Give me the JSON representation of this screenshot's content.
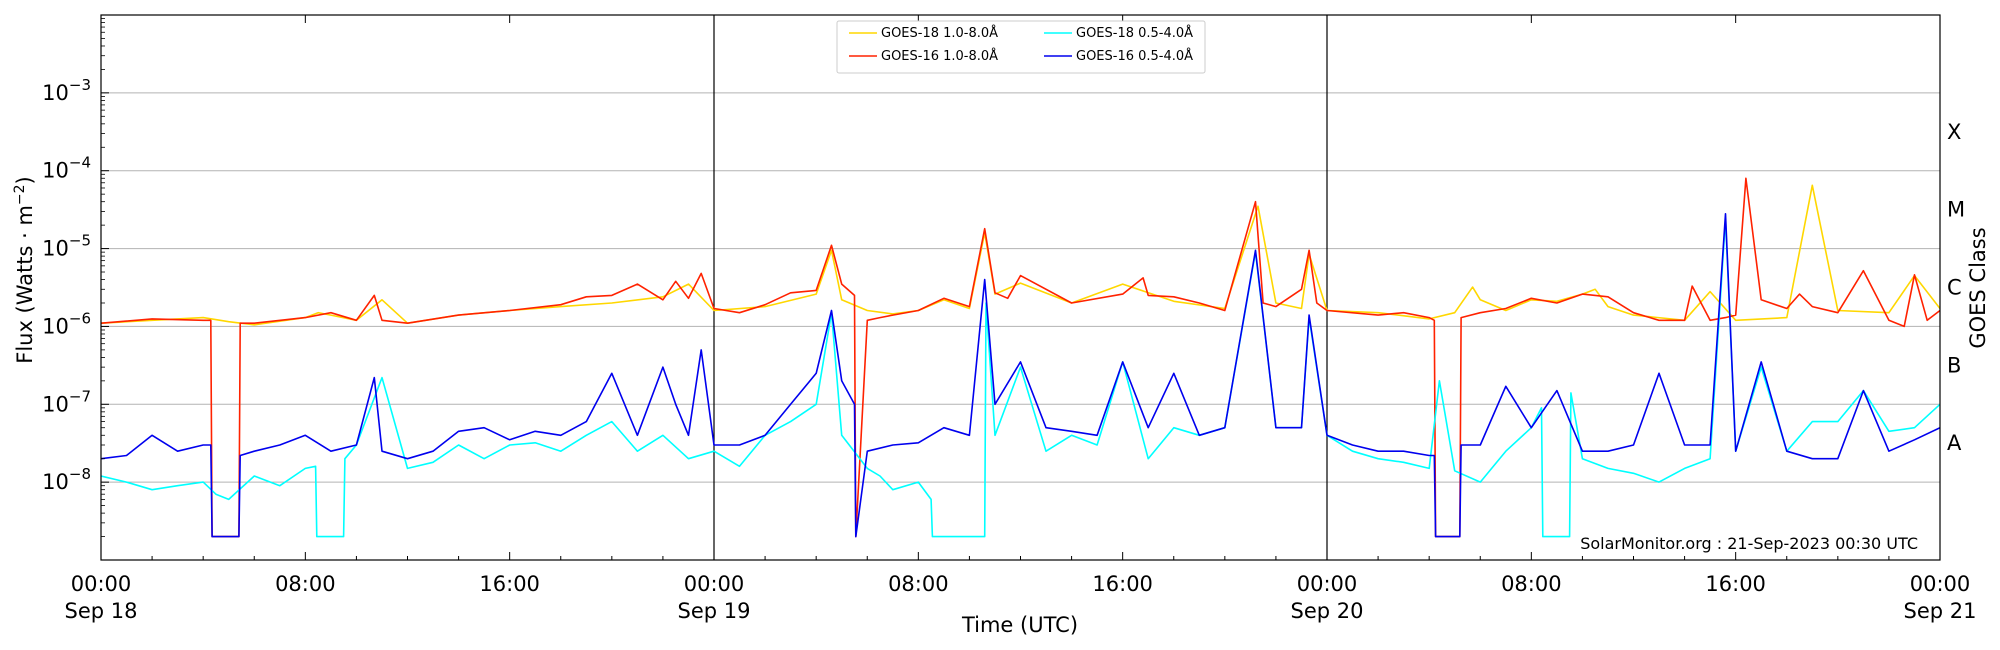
{
  "chart_data": {
    "type": "line",
    "title": "",
    "xlabel": "Time (UTC)",
    "ylabel": "Flux (Watts · m",
    "ylabel_sup": "−2",
    "ylabel_close": ")",
    "right_label": "GOES Class",
    "y_scale": "log",
    "ylim": [
      1e-09,
      0.01
    ],
    "xlim_hours": [
      0,
      72
    ],
    "grid": "horizontal",
    "legend_position": "top-center",
    "watermark": "SolarMonitor.org : 21-Sep-2023 00:30 UTC",
    "x_ticks": [
      {
        "hour": 0,
        "time": "00:00",
        "date": "Sep 18"
      },
      {
        "hour": 8,
        "time": "08:00",
        "date": ""
      },
      {
        "hour": 16,
        "time": "16:00",
        "date": ""
      },
      {
        "hour": 24,
        "time": "00:00",
        "date": "Sep 19"
      },
      {
        "hour": 32,
        "time": "08:00",
        "date": ""
      },
      {
        "hour": 40,
        "time": "16:00",
        "date": ""
      },
      {
        "hour": 48,
        "time": "00:00",
        "date": "Sep 20"
      },
      {
        "hour": 56,
        "time": "08:00",
        "date": ""
      },
      {
        "hour": 64,
        "time": "16:00",
        "date": ""
      },
      {
        "hour": 72,
        "time": "00:00",
        "date": "Sep 21"
      }
    ],
    "day_boundaries_hours": [
      24,
      48
    ],
    "y_ticks": [
      {
        "exp": -8,
        "base": "10",
        "sup": "−8"
      },
      {
        "exp": -7,
        "base": "10",
        "sup": "−7"
      },
      {
        "exp": -6,
        "base": "10",
        "sup": "−6"
      },
      {
        "exp": -5,
        "base": "10",
        "sup": "−5"
      },
      {
        "exp": -4,
        "base": "10",
        "sup": "−4"
      },
      {
        "exp": -3,
        "base": "10",
        "sup": "−3"
      }
    ],
    "goes_classes": [
      {
        "label": "A",
        "exp": -7.5
      },
      {
        "label": "B",
        "exp": -6.5
      },
      {
        "label": "C",
        "exp": -5.5
      },
      {
        "label": "M",
        "exp": -4.5
      },
      {
        "label": "X",
        "exp": -3.5
      }
    ],
    "series": [
      {
        "name": "GOES-18 1.0-8.0Å",
        "color": "#ffd700",
        "x": [
          0,
          2,
          4,
          5,
          6,
          8,
          8.5,
          9,
          10,
          11,
          12,
          14,
          16,
          18,
          20,
          22,
          23,
          24,
          26,
          28,
          28.6,
          29,
          30,
          31,
          32,
          33,
          34,
          34.6,
          35,
          36,
          38,
          40,
          42,
          44,
          45.3,
          46,
          47,
          47.3,
          48,
          50,
          52,
          53,
          53.7,
          54,
          55,
          56,
          57,
          58,
          58.5,
          59,
          60,
          62,
          63,
          64,
          66,
          67,
          68,
          70,
          71,
          72
        ],
        "y": [
          1.1e-06,
          1.2e-06,
          1.3e-06,
          1.15e-06,
          1.05e-06,
          1.3e-06,
          1.5e-06,
          1.4e-06,
          1.2e-06,
          2.2e-06,
          1.1e-06,
          1.4e-06,
          1.6e-06,
          1.8e-06,
          2e-06,
          2.4e-06,
          3.5e-06,
          1.6e-06,
          1.8e-06,
          2.6e-06,
          9.5e-06,
          2.2e-06,
          1.6e-06,
          1.45e-06,
          1.6e-06,
          2.2e-06,
          1.7e-06,
          1.6e-05,
          2.6e-06,
          3.6e-06,
          2e-06,
          3.5e-06,
          2.1e-06,
          1.7e-06,
          3.5e-05,
          2e-06,
          1.7e-06,
          8.5e-06,
          1.6e-06,
          1.5e-06,
          1.25e-06,
          1.5e-06,
          3.2e-06,
          2.2e-06,
          1.6e-06,
          2.2e-06,
          2.1e-06,
          2.6e-06,
          3e-06,
          1.8e-06,
          1.4e-06,
          1.2e-06,
          2.8e-06,
          1.2e-06,
          1.3e-06,
          6.5e-05,
          1.6e-06,
          1.5e-06,
          4.5e-06,
          1.7e-06
        ]
      },
      {
        "name": "GOES-16 1.0-8.0Å",
        "color": "#ff2200",
        "x": [
          0,
          2,
          4,
          4.3,
          4.35,
          5.4,
          5.45,
          6,
          8,
          9,
          10,
          10.7,
          11,
          12,
          14,
          16,
          18,
          19,
          20,
          21,
          22,
          22.5,
          23,
          23.5,
          24,
          25,
          26,
          27,
          28,
          28.6,
          29,
          29.5,
          29.55,
          30,
          30.5,
          31,
          32,
          33,
          34,
          34.6,
          35,
          35.5,
          36,
          38,
          40,
          40.8,
          41,
          42,
          43,
          44,
          45.2,
          45.5,
          46,
          47,
          47.3,
          47.6,
          48,
          50,
          51,
          52,
          52.2,
          52.25,
          53.2,
          53.25,
          54,
          55,
          56,
          57,
          58,
          59,
          60,
          61,
          62,
          62.3,
          63,
          63.6,
          64,
          64.4,
          65,
          66,
          66.5,
          67,
          68,
          69,
          70,
          70.6,
          71,
          71.5,
          72
        ],
        "y": [
          1.1e-06,
          1.25e-06,
          1.2e-06,
          1.2e-06,
          2e-09,
          2e-09,
          1.1e-06,
          1.1e-06,
          1.3e-06,
          1.5e-06,
          1.2e-06,
          2.5e-06,
          1.2e-06,
          1.1e-06,
          1.4e-06,
          1.6e-06,
          1.9e-06,
          2.4e-06,
          2.5e-06,
          3.5e-06,
          2.2e-06,
          3.8e-06,
          2.3e-06,
          4.8e-06,
          1.7e-06,
          1.5e-06,
          1.9e-06,
          2.7e-06,
          2.9e-06,
          1.1e-05,
          3.5e-06,
          2.5e-06,
          2e-09,
          1.2e-06,
          1.3e-06,
          1.4e-06,
          1.6e-06,
          2.3e-06,
          1.8e-06,
          1.8e-05,
          2.7e-06,
          2.3e-06,
          4.5e-06,
          2e-06,
          2.6e-06,
          4.2e-06,
          2.5e-06,
          2.4e-06,
          2e-06,
          1.6e-06,
          4e-05,
          2e-06,
          1.8e-06,
          3e-06,
          9.5e-06,
          2e-06,
          1.6e-06,
          1.4e-06,
          1.5e-06,
          1.3e-06,
          1.2e-06,
          2e-09,
          2e-09,
          1.3e-06,
          1.5e-06,
          1.7e-06,
          2.3e-06,
          2e-06,
          2.6e-06,
          2.4e-06,
          1.5e-06,
          1.2e-06,
          1.2e-06,
          3.3e-06,
          1.2e-06,
          1.3e-06,
          1.4e-06,
          8e-05,
          2.2e-06,
          1.7e-06,
          2.6e-06,
          1.8e-06,
          1.5e-06,
          5.2e-06,
          1.2e-06,
          1e-06,
          4.6e-06,
          1.2e-06,
          1.6e-06
        ]
      },
      {
        "name": "GOES-18 0.5-4.0Å",
        "color": "#00ffff",
        "x": [
          0,
          1,
          2,
          3,
          4,
          4.5,
          5,
          6,
          7,
          8,
          8.4,
          8.45,
          9.5,
          9.55,
          10,
          11,
          12,
          13,
          14,
          15,
          16,
          17,
          18,
          19,
          20,
          21,
          22,
          23,
          24,
          25,
          26,
          27,
          28,
          28.6,
          29,
          30,
          30.5,
          31,
          32,
          32.5,
          32.55,
          34.6,
          34.65,
          35,
          36,
          37,
          38,
          39,
          40,
          41,
          42,
          43,
          44,
          45.2,
          46,
          47,
          47.3,
          48,
          49,
          50,
          51,
          52,
          52.4,
          53,
          54,
          55,
          56,
          56.4,
          56.45,
          57.5,
          57.55,
          58,
          59,
          60,
          61,
          62,
          63,
          63.6,
          64,
          65,
          66,
          67,
          68,
          69,
          70,
          71,
          72
        ],
        "y": [
          1.2e-08,
          1e-08,
          8e-09,
          9e-09,
          1e-08,
          7e-09,
          6e-09,
          1.2e-08,
          9e-09,
          1.5e-08,
          1.6e-08,
          2e-09,
          2e-09,
          2e-08,
          3e-08,
          2.2e-07,
          1.5e-08,
          1.8e-08,
          3e-08,
          2e-08,
          3e-08,
          3.2e-08,
          2.5e-08,
          4e-08,
          6e-08,
          2.5e-08,
          4e-08,
          2e-08,
          2.5e-08,
          1.6e-08,
          4e-08,
          6e-08,
          1e-07,
          1.5e-06,
          4e-08,
          1.5e-08,
          1.2e-08,
          8e-09,
          1e-08,
          6e-09,
          2e-09,
          2e-09,
          2e-06,
          4e-08,
          3e-07,
          2.5e-08,
          4e-08,
          3e-08,
          3.5e-07,
          2e-08,
          5e-08,
          4e-08,
          5e-08,
          9e-06,
          5e-08,
          5e-08,
          1.3e-06,
          4e-08,
          2.5e-08,
          2e-08,
          1.8e-08,
          1.5e-08,
          2e-07,
          1.4e-08,
          1e-08,
          2.5e-08,
          5e-08,
          9e-08,
          2e-09,
          2e-09,
          1.4e-07,
          2e-08,
          1.5e-08,
          1.3e-08,
          1e-08,
          1.5e-08,
          2e-08,
          2.4e-05,
          2.5e-08,
          3e-07,
          2.5e-08,
          6e-08,
          6e-08,
          1.5e-07,
          4.5e-08,
          5e-08,
          1e-07
        ]
      },
      {
        "name": "GOES-16 0.5-4.0Å",
        "color": "#0000ee",
        "x": [
          0,
          1,
          2,
          3,
          4,
          4.3,
          4.35,
          5.4,
          5.45,
          6,
          7,
          8,
          9,
          10,
          10.7,
          11,
          12,
          13,
          14,
          15,
          16,
          17,
          18,
          19,
          20,
          21,
          22,
          22.5,
          23,
          23.5,
          24,
          25,
          26,
          27,
          28,
          28.6,
          29,
          29.5,
          29.55,
          30,
          31,
          32,
          33,
          34,
          34.6,
          35,
          36,
          37,
          38,
          39,
          40,
          41,
          42,
          43,
          44,
          45.2,
          46,
          47,
          47.3,
          48,
          49,
          50,
          51,
          52,
          52.2,
          52.25,
          53.2,
          53.25,
          54,
          55,
          56,
          57,
          58,
          59,
          60,
          61,
          62,
          63,
          63.6,
          64,
          65,
          66,
          67,
          68,
          69,
          70,
          71,
          72
        ],
        "y": [
          2e-08,
          2.2e-08,
          4e-08,
          2.5e-08,
          3e-08,
          3e-08,
          2e-09,
          2e-09,
          2.2e-08,
          2.5e-08,
          3e-08,
          4e-08,
          2.5e-08,
          3e-08,
          2.2e-07,
          2.5e-08,
          2e-08,
          2.5e-08,
          4.5e-08,
          5e-08,
          3.5e-08,
          4.5e-08,
          4e-08,
          6e-08,
          2.5e-07,
          4e-08,
          3e-07,
          1e-07,
          4e-08,
          5e-07,
          3e-08,
          3e-08,
          4e-08,
          1e-07,
          2.5e-07,
          1.6e-06,
          2e-07,
          1e-07,
          2e-09,
          2.5e-08,
          3e-08,
          3.2e-08,
          5e-08,
          4e-08,
          4e-06,
          1e-07,
          3.5e-07,
          5e-08,
          4.5e-08,
          4e-08,
          3.5e-07,
          5e-08,
          2.5e-07,
          4e-08,
          5e-08,
          9.5e-06,
          5e-08,
          5e-08,
          1.4e-06,
          4e-08,
          3e-08,
          2.5e-08,
          2.5e-08,
          2.2e-08,
          2.2e-08,
          2e-09,
          2e-09,
          3e-08,
          3e-08,
          1.7e-07,
          5e-08,
          1.5e-07,
          2.5e-08,
          2.5e-08,
          3e-08,
          2.5e-07,
          3e-08,
          3e-08,
          2.8e-05,
          2.5e-08,
          3.5e-07,
          2.5e-08,
          2e-08,
          2e-08,
          1.5e-07,
          2.5e-08,
          3.5e-08,
          5e-08
        ]
      }
    ]
  }
}
